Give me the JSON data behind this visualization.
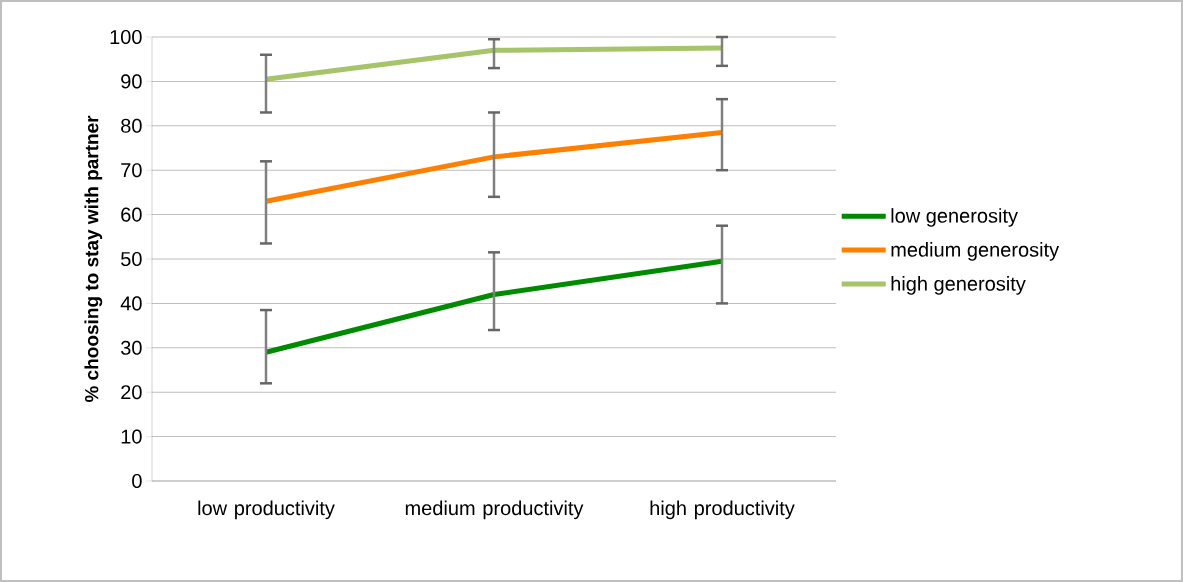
{
  "chart_data": {
    "type": "line",
    "ylabel": "% choosing to stay with partner",
    "categories": [
      "low productivity",
      "medium productivity",
      "high productivity"
    ],
    "series": [
      {
        "name": "low generosity",
        "color": "#008a00",
        "values": [
          29,
          42,
          49.5
        ],
        "errors": [
          [
            22,
            38.5
          ],
          [
            34,
            51.5
          ],
          [
            40,
            57.5
          ]
        ]
      },
      {
        "name": "medium generosity",
        "color": "#ff7f00",
        "values": [
          63,
          73,
          78.5
        ],
        "errors": [
          [
            53.5,
            72
          ],
          [
            64,
            83
          ],
          [
            70,
            86
          ]
        ]
      },
      {
        "name": "high generosity",
        "color": "#a6c46a",
        "values": [
          90.5,
          97,
          97.5
        ],
        "errors": [
          [
            83,
            96
          ],
          [
            93,
            99.5
          ],
          [
            93.5,
            100
          ]
        ]
      }
    ],
    "ylim": [
      0,
      100
    ],
    "yticks": [
      0,
      10,
      20,
      30,
      40,
      50,
      60,
      70,
      80,
      90,
      100
    ],
    "grid": "y",
    "legend": "right",
    "marker": "none",
    "line_style": "solid"
  }
}
